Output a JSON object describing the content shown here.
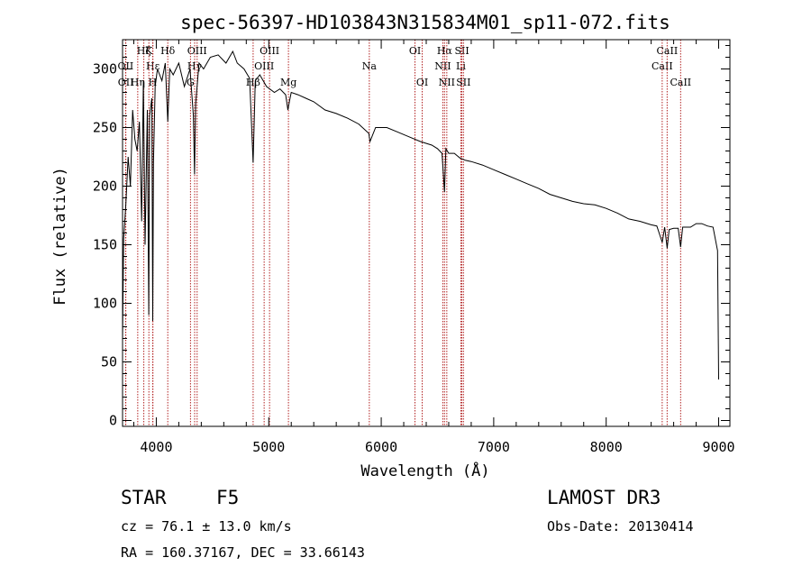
{
  "chart_data": {
    "type": "line",
    "title": "spec-56397-HD103843N315834M01_sp11-072.fits",
    "xlabel": "Wavelength (Å)",
    "ylabel": "Flux (relative)",
    "xlim": [
      3700,
      9100
    ],
    "ylim": [
      -5,
      325
    ],
    "x_ticks": [
      4000,
      5000,
      6000,
      7000,
      8000,
      9000
    ],
    "x_tick_labels": [
      "4000",
      "5000",
      "6000",
      "7000",
      "8000",
      "9000"
    ],
    "y_ticks": [
      0,
      50,
      100,
      150,
      200,
      250,
      300
    ],
    "y_tick_labels": [
      "0",
      "50",
      "100",
      "150",
      "200",
      "250",
      "300"
    ],
    "series": [
      {
        "name": "flux",
        "x": [
          3700,
          3710,
          3730,
          3750,
          3770,
          3790,
          3810,
          3830,
          3850,
          3870,
          3885,
          3900,
          3920,
          3933,
          3940,
          3960,
          3968,
          3975,
          3990,
          4010,
          4050,
          4080,
          4102,
          4120,
          4150,
          4200,
          4250,
          4300,
          4330,
          4340,
          4350,
          4380,
          4420,
          4480,
          4550,
          4620,
          4680,
          4720,
          4780,
          4830,
          4861,
          4880,
          4920,
          4980,
          5050,
          5100,
          5150,
          5170,
          5183,
          5200,
          5260,
          5330,
          5400,
          5500,
          5600,
          5700,
          5800,
          5890,
          5900,
          5950,
          6050,
          6150,
          6250,
          6350,
          6450,
          6500,
          6540,
          6563,
          6575,
          6600,
          6650,
          6700,
          6750,
          6800,
          6900,
          7000,
          7100,
          7200,
          7300,
          7400,
          7500,
          7600,
          7700,
          7800,
          7900,
          8000,
          8100,
          8200,
          8300,
          8400,
          8450,
          8498,
          8520,
          8542,
          8560,
          8600,
          8640,
          8662,
          8680,
          8750,
          8800,
          8850,
          8900,
          8950,
          8990,
          9000
        ],
        "y": [
          70,
          155,
          185,
          225,
          200,
          265,
          240,
          230,
          255,
          170,
          290,
          150,
          265,
          90,
          260,
          275,
          85,
          220,
          285,
          300,
          290,
          305,
          255,
          300,
          295,
          305,
          285,
          300,
          260,
          210,
          270,
          305,
          300,
          310,
          312,
          305,
          315,
          305,
          300,
          292,
          220,
          290,
          295,
          285,
          280,
          283,
          278,
          265,
          272,
          280,
          278,
          275,
          272,
          265,
          262,
          258,
          253,
          245,
          238,
          250,
          250,
          246,
          242,
          238,
          235,
          232,
          228,
          195,
          232,
          228,
          228,
          224,
          222,
          221,
          218,
          214,
          210,
          206,
          202,
          198,
          193,
          190,
          187,
          185,
          184,
          181,
          177,
          172,
          170,
          167,
          166,
          152,
          165,
          147,
          163,
          164,
          164,
          148,
          165,
          165,
          168,
          168,
          166,
          165,
          145,
          35
        ]
      }
    ],
    "line_markers": [
      {
        "label": "Hζ",
        "wavelength": 3889,
        "row": 1
      },
      {
        "label": "OII",
        "wavelength": 3727,
        "row": 2
      },
      {
        "label": "OII",
        "wavelength": 3729,
        "row": 3
      },
      {
        "label": "Hη",
        "wavelength": 3835,
        "row": 3
      },
      {
        "label": "K",
        "wavelength": 3934,
        "row": 1
      },
      {
        "label": "Hε",
        "wavelength": 3970,
        "row": 2
      },
      {
        "label": "H",
        "wavelength": 3968,
        "row": 3
      },
      {
        "label": "Hδ",
        "wavelength": 4102,
        "row": 1
      },
      {
        "label": "Hγ",
        "wavelength": 4341,
        "row": 2
      },
      {
        "label": "OIII",
        "wavelength": 4363,
        "row": 1
      },
      {
        "label": "G",
        "wavelength": 4304,
        "row": 3
      },
      {
        "label": "Hβ",
        "wavelength": 4861,
        "row": 3
      },
      {
        "label": "OIII",
        "wavelength": 4959,
        "row": 2
      },
      {
        "label": "OIII",
        "wavelength": 5007,
        "row": 1
      },
      {
        "label": "Mg",
        "wavelength": 5175,
        "row": 3
      },
      {
        "label": "Na",
        "wavelength": 5894,
        "row": 2
      },
      {
        "label": "OI",
        "wavelength": 6300,
        "row": 1
      },
      {
        "label": "OI",
        "wavelength": 6364,
        "row": 3
      },
      {
        "label": "NII",
        "wavelength": 6548,
        "row": 2
      },
      {
        "label": "Hα",
        "wavelength": 6563,
        "row": 1
      },
      {
        "label": "NII",
        "wavelength": 6583,
        "row": 3
      },
      {
        "label": "Li",
        "wavelength": 6708,
        "row": 2
      },
      {
        "label": "SII",
        "wavelength": 6717,
        "row": 1
      },
      {
        "label": "SII",
        "wavelength": 6731,
        "row": 3
      },
      {
        "label": "CaII",
        "wavelength": 8498,
        "row": 2
      },
      {
        "label": "CaII",
        "wavelength": 8542,
        "row": 1
      },
      {
        "label": "CaII",
        "wavelength": 8662,
        "row": 3
      }
    ],
    "colors": {
      "spectrum": "#000000",
      "markers": "#b22222",
      "axes": "#000000"
    }
  },
  "info": {
    "object_class": "STAR",
    "subclass": "F5",
    "survey": "LAMOST DR3",
    "cz": "cz = 76.1 ± 13.0 km/s",
    "obs_date": "Obs-Date: 20130414",
    "coords": "RA = 160.37167, DEC =  33.66143"
  }
}
